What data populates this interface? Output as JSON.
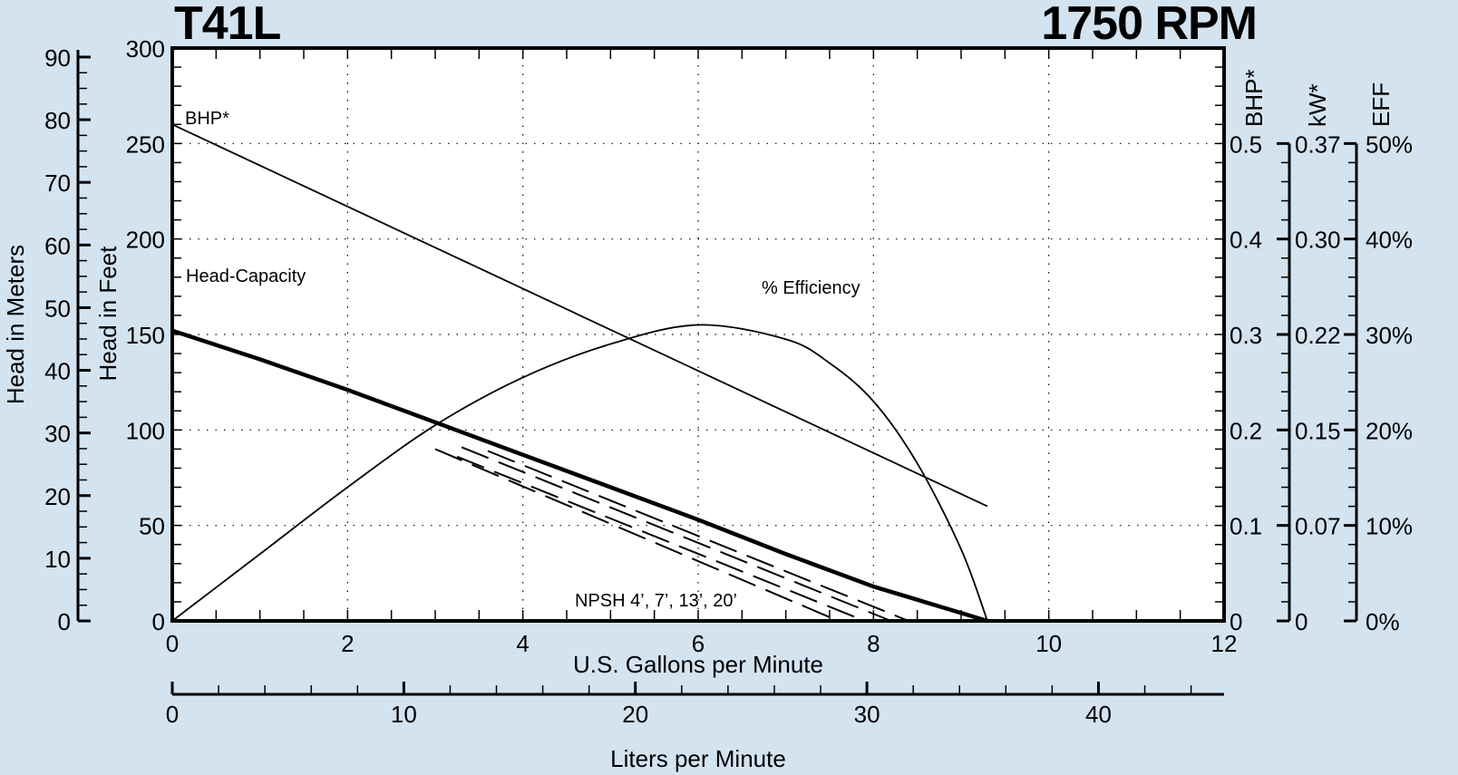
{
  "header": {
    "model": "T41L",
    "speed": "1750 RPM"
  },
  "axes": {
    "gpm_label": "U.S. Gallons per Minute",
    "lpm_label": "Liters per Minute",
    "feet_label": "Head in Feet",
    "meters_label": "Head in Meters",
    "bhp_label": "BHP*",
    "kw_label": "kW*",
    "eff_label": "EFF"
  },
  "annotations": {
    "bhp": "BHP*",
    "head_capacity": "Head-Capacity",
    "efficiency": "% Efficiency",
    "npsh": "NPSH 4’, 7’, 13’, 20’"
  },
  "chart_data": {
    "type": "line",
    "title": "T41L 1750 RPM",
    "xlabel": "U.S. Gallons per Minute",
    "xlabel_secondary": "Liters per Minute",
    "ylabel": "Head in Feet",
    "ylabel_secondary": "Head in Meters",
    "xlim": [
      0,
      12
    ],
    "ylim": [
      0,
      300
    ],
    "x_ticks": [
      0,
      2,
      4,
      6,
      8,
      10,
      12
    ],
    "lpm_ticks": [
      0,
      10,
      20,
      30,
      40
    ],
    "feet_ticks": [
      0,
      50,
      100,
      150,
      200,
      250,
      300
    ],
    "meters_ticks": [
      0,
      10,
      20,
      30,
      40,
      50,
      60,
      70,
      80,
      90
    ],
    "bhp_ticks": [
      0,
      0.1,
      0.2,
      0.3,
      0.4,
      0.5
    ],
    "kw_ticks": [
      "0",
      "0.07",
      "0.15",
      "0.22",
      "0.30",
      "0.37"
    ],
    "eff_ticks": [
      "0%",
      "10%",
      "20%",
      "30%",
      "40%",
      "50%"
    ],
    "grid": "dotted",
    "series": [
      {
        "name": "Head-Capacity",
        "axis": "feet",
        "style": "thick-solid",
        "x": [
          0,
          1,
          2,
          3,
          4,
          5,
          6,
          7,
          8,
          9.3
        ],
        "y": [
          152,
          137,
          121,
          104,
          87,
          70,
          53,
          35,
          18,
          0
        ]
      },
      {
        "name": "BHP*",
        "axis": "bhp",
        "style": "solid",
        "x": [
          0,
          9.3
        ],
        "y": [
          0.52,
          0.12
        ]
      },
      {
        "name": "% Efficiency",
        "axis": "eff",
        "style": "solid",
        "x": [
          0,
          1,
          2,
          3,
          4,
          5,
          6,
          7,
          7.5,
          8,
          8.5,
          9,
          9.3
        ],
        "y": [
          0,
          7,
          14,
          20.5,
          25.5,
          29,
          31,
          29.5,
          27,
          23,
          16.5,
          7.5,
          0
        ]
      },
      {
        "name": "NPSH 4'",
        "axis": "feet",
        "style": "dashed",
        "x": [
          3.6,
          8.4
        ],
        "y": [
          89,
          0
        ]
      },
      {
        "name": "NPSH 7'",
        "axis": "feet",
        "style": "dashed",
        "x": [
          3.3,
          8.2
        ],
        "y": [
          91,
          0
        ]
      },
      {
        "name": "NPSH 13'",
        "axis": "feet",
        "style": "dashed",
        "x": [
          3.25,
          7.9
        ],
        "y": [
          86,
          0
        ]
      },
      {
        "name": "NPSH 20'",
        "axis": "feet",
        "style": "dashed",
        "x": [
          3.0,
          7.6
        ],
        "y": [
          90,
          0
        ]
      }
    ]
  }
}
